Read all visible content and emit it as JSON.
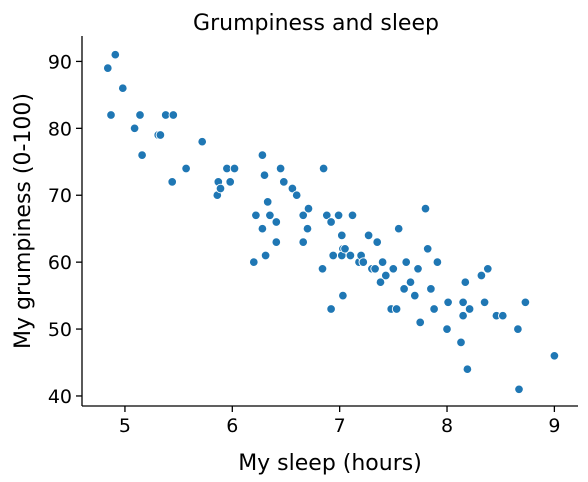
{
  "chart_data": {
    "type": "scatter",
    "title": "Grumpiness and sleep",
    "xlabel": "My sleep (hours)",
    "ylabel": "My grumpiness (0-100)",
    "xlim": [
      4.6,
      9.22
    ],
    "ylim": [
      38.5,
      93.8
    ],
    "xticks": [
      "5",
      "6",
      "7",
      "8",
      "9"
    ],
    "yticks": [
      "40",
      "50",
      "60",
      "70",
      "80",
      "90"
    ],
    "grid": false,
    "color": "#1f77b4",
    "points": [
      [
        4.84,
        89
      ],
      [
        4.91,
        91
      ],
      [
        4.98,
        86
      ],
      [
        4.87,
        82
      ],
      [
        5.09,
        80
      ],
      [
        5.14,
        82
      ],
      [
        5.16,
        76
      ],
      [
        5.31,
        79
      ],
      [
        5.33,
        79
      ],
      [
        5.38,
        82
      ],
      [
        5.45,
        82
      ],
      [
        5.44,
        72
      ],
      [
        5.57,
        74
      ],
      [
        5.72,
        78
      ],
      [
        5.86,
        70
      ],
      [
        5.87,
        72
      ],
      [
        5.89,
        71
      ],
      [
        5.95,
        74
      ],
      [
        5.98,
        72
      ],
      [
        6.02,
        74
      ],
      [
        6.2,
        60
      ],
      [
        6.22,
        67
      ],
      [
        6.28,
        76
      ],
      [
        6.3,
        73
      ],
      [
        6.28,
        65
      ],
      [
        6.31,
        61
      ],
      [
        6.33,
        69
      ],
      [
        6.35,
        67
      ],
      [
        6.41,
        63
      ],
      [
        6.41,
        66
      ],
      [
        6.45,
        74
      ],
      [
        6.48,
        72
      ],
      [
        6.56,
        71
      ],
      [
        6.6,
        70
      ],
      [
        6.66,
        67
      ],
      [
        6.66,
        63
      ],
      [
        6.7,
        65
      ],
      [
        6.71,
        68
      ],
      [
        6.85,
        74
      ],
      [
        6.84,
        59
      ],
      [
        6.88,
        67
      ],
      [
        6.92,
        66
      ],
      [
        6.92,
        53
      ],
      [
        6.94,
        61
      ],
      [
        6.99,
        67
      ],
      [
        7.02,
        64
      ],
      [
        7.03,
        62
      ],
      [
        7.02,
        61
      ],
      [
        7.03,
        55
      ],
      [
        7.05,
        62
      ],
      [
        7.1,
        61
      ],
      [
        7.12,
        67
      ],
      [
        7.18,
        60
      ],
      [
        7.2,
        61
      ],
      [
        7.22,
        60
      ],
      [
        7.27,
        64
      ],
      [
        7.3,
        59
      ],
      [
        7.33,
        59
      ],
      [
        7.35,
        63
      ],
      [
        7.38,
        57
      ],
      [
        7.4,
        60
      ],
      [
        7.43,
        58
      ],
      [
        7.48,
        53
      ],
      [
        7.5,
        59
      ],
      [
        7.53,
        53
      ],
      [
        7.55,
        65
      ],
      [
        7.6,
        56
      ],
      [
        7.62,
        60
      ],
      [
        7.66,
        57
      ],
      [
        7.7,
        55
      ],
      [
        7.73,
        59
      ],
      [
        7.75,
        51
      ],
      [
        7.8,
        68
      ],
      [
        7.82,
        62
      ],
      [
        7.85,
        56
      ],
      [
        7.88,
        53
      ],
      [
        7.91,
        60
      ],
      [
        8.0,
        50
      ],
      [
        8.01,
        54
      ],
      [
        8.13,
        48
      ],
      [
        8.15,
        54
      ],
      [
        8.15,
        52
      ],
      [
        8.17,
        57
      ],
      [
        8.19,
        44
      ],
      [
        8.21,
        53
      ],
      [
        8.32,
        58
      ],
      [
        8.35,
        54
      ],
      [
        8.38,
        59
      ],
      [
        8.46,
        52
      ],
      [
        8.52,
        52
      ],
      [
        8.66,
        50
      ],
      [
        8.67,
        41
      ],
      [
        8.73,
        54
      ],
      [
        9.0,
        46
      ]
    ]
  }
}
